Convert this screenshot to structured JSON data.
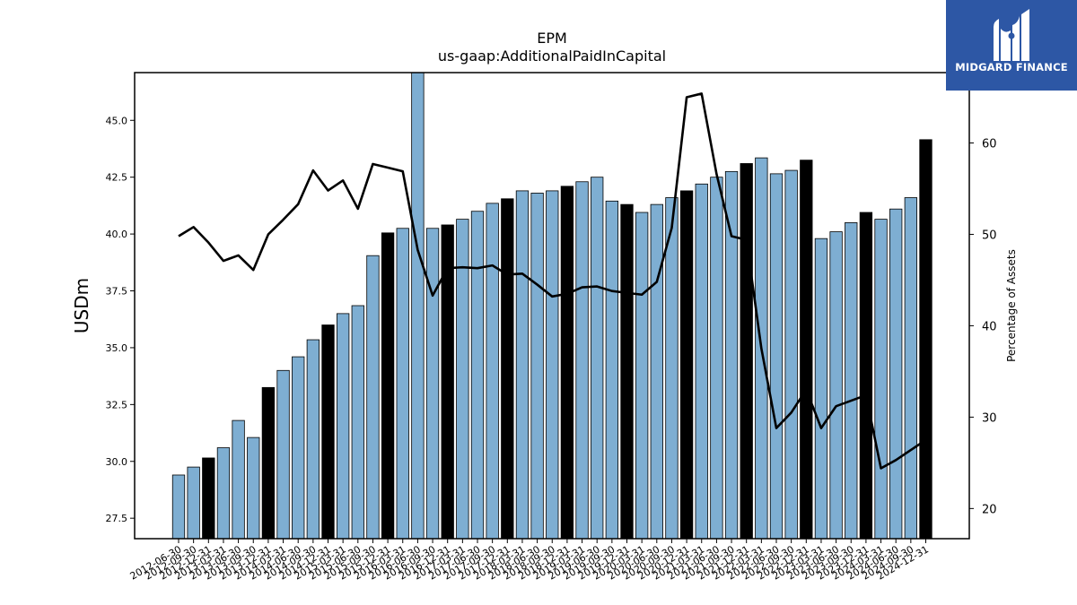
{
  "chart_data": {
    "type": "bar",
    "title": "EPM",
    "subtitle": "us-gaap:AdditionalPaidInCapital",
    "ylabel": "USDm",
    "y2label": "Percentage of Assets",
    "ylim": [
      26.6,
      47.1
    ],
    "y2lim": [
      16.7,
      67.7
    ],
    "yticks": [
      27.5,
      30.0,
      32.5,
      35.0,
      37.5,
      40.0,
      42.5,
      45.0
    ],
    "y2ticks": [
      20,
      30,
      40,
      50,
      60
    ],
    "grid": false,
    "colors": {
      "quarter": "#7eaed2",
      "year_end": "#000000",
      "line": "#000000"
    },
    "categories": [
      "2012-06-30",
      "2012-09-30",
      "2012-12-31",
      "2013-03-31",
      "2013-06-30",
      "2013-09-30",
      "2013-12-31",
      "2014-03-31",
      "2014-06-30",
      "2014-09-30",
      "2014-12-31",
      "2015-03-31",
      "2015-06-30",
      "2015-09-30",
      "2015-12-31",
      "2016-03-31",
      "2016-06-30",
      "2016-09-30",
      "2016-12-31",
      "2017-03-31",
      "2017-06-30",
      "2017-09-30",
      "2017-12-31",
      "2018-03-31",
      "2018-06-30",
      "2018-09-30",
      "2018-12-31",
      "2019-03-31",
      "2019-06-30",
      "2019-09-30",
      "2019-12-31",
      "2020-03-31",
      "2020-06-30",
      "2020-09-30",
      "2020-12-31",
      "2021-03-31",
      "2021-06-30",
      "2021-09-30",
      "2021-12-31",
      "2022-03-31",
      "2022-06-30",
      "2022-09-30",
      "2022-12-31",
      "2023-03-31",
      "2023-06-30",
      "2023-09-30",
      "2023-12-31",
      "2024-03-31",
      "2024-06-30",
      "2024-09-30",
      "2024-12-31"
    ],
    "series": [
      {
        "kind": "bar",
        "axis": "left",
        "values": [
          29.4,
          29.75,
          30.15,
          30.6,
          31.8,
          31.05,
          33.25,
          34.0,
          34.6,
          35.35,
          36.0,
          36.5,
          36.85,
          39.05,
          40.05,
          40.25,
          47.1,
          40.25,
          40.4,
          40.65,
          41.0,
          41.35,
          41.55,
          41.9,
          41.8,
          41.9,
          42.1,
          42.3,
          42.5,
          41.45,
          41.3,
          40.95,
          41.3,
          41.6,
          41.9,
          42.2,
          42.5,
          42.75,
          43.1,
          43.35,
          42.65,
          42.8,
          43.25,
          39.8,
          40.1,
          40.5,
          40.95,
          40.65,
          41.1,
          41.6,
          44.15
        ],
        "year_end": [
          false,
          false,
          true,
          false,
          false,
          false,
          true,
          false,
          false,
          false,
          true,
          false,
          false,
          false,
          true,
          false,
          false,
          false,
          true,
          false,
          false,
          false,
          true,
          false,
          false,
          false,
          true,
          false,
          false,
          false,
          true,
          false,
          false,
          false,
          true,
          false,
          false,
          false,
          true,
          false,
          false,
          false,
          true,
          false,
          false,
          false,
          true,
          false,
          false,
          false,
          true
        ]
      },
      {
        "kind": "line",
        "axis": "right",
        "values": [
          49.8,
          50.8,
          49.1,
          47.1,
          47.7,
          46.1,
          50.0,
          51.6,
          53.3,
          57.0,
          54.8,
          55.9,
          52.8,
          57.7,
          57.3,
          56.9,
          48.3,
          43.3,
          46.3,
          46.4,
          46.3,
          46.6,
          45.6,
          45.7,
          44.5,
          43.2,
          43.5,
          44.2,
          44.3,
          43.8,
          43.6,
          43.4,
          44.8,
          50.7,
          65.0,
          65.4,
          56.6,
          49.8,
          49.4,
          37.5,
          28.8,
          30.5,
          33.0,
          28.8,
          31.2,
          31.8,
          32.4,
          24.4,
          25.3,
          26.4,
          27.5
        ]
      }
    ]
  },
  "logo": {
    "text": "MIDGARD FINANCE"
  }
}
